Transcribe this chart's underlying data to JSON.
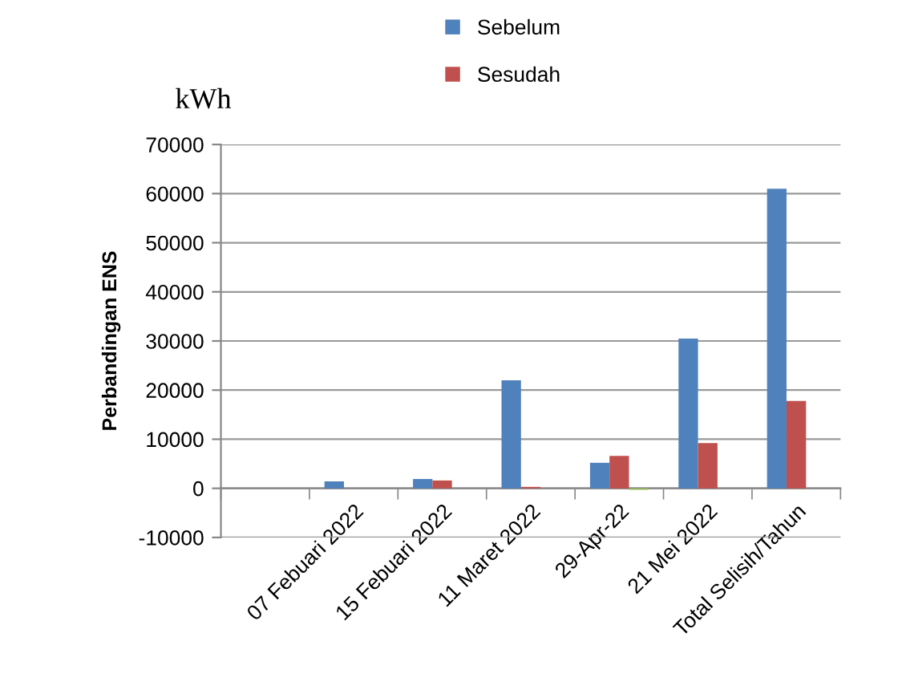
{
  "chart_data": {
    "type": "bar",
    "ylabel": "Perbandingan ENS",
    "annotations": [
      "kWh"
    ],
    "categories": [
      null,
      "07 Febuari 2022",
      "15 Febuari 2022",
      "11 Maret 2022",
      "29-Apr-22",
      "21 Mei 2022",
      "Total Selisih/Tahun"
    ],
    "series": [
      {
        "name": "Sebelum",
        "color": "#4f81bd",
        "values": [
          null,
          1400,
          1900,
          22000,
          5200,
          30500,
          61000
        ]
      },
      {
        "name": "Sesudah",
        "color": "#c0504d",
        "values": [
          null,
          null,
          1600,
          300,
          6600,
          9200,
          17800
        ]
      },
      {
        "color": "#9bbb59",
        "values": [
          null,
          null,
          null,
          null,
          -300,
          null,
          null
        ]
      }
    ],
    "ylim": [
      -10000,
      70000
    ],
    "yticks": [
      -10000,
      0,
      10000,
      20000,
      30000,
      40000,
      50000,
      60000,
      70000
    ],
    "grid": "y",
    "legend": "top"
  }
}
